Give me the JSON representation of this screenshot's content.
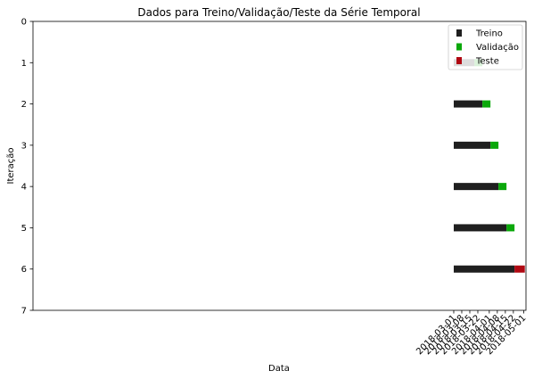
{
  "chart_data": {
    "type": "bar",
    "orientation": "horizontal",
    "title": "Dados para Treino/Validação/Teste da Série Temporal",
    "xlabel": "Data",
    "ylabel": "Iteração",
    "xlim": [
      "2017-02-27",
      "2018-05-03"
    ],
    "ylim": [
      7,
      0
    ],
    "x_ticks": [
      "2018-03-01",
      "2018-03-08",
      "2018-03-15",
      "2018-03-22",
      "2018-04-01",
      "2018-04-08",
      "2018-04-15",
      "2018-04-22",
      "2018-05-01"
    ],
    "y_ticks": [
      "0",
      "1",
      "2",
      "3",
      "4",
      "5",
      "6",
      "7"
    ],
    "legend": {
      "placement": "top-right",
      "entries": [
        {
          "name": "Treino",
          "color": "#1f1f1f"
        },
        {
          "name": "Validação",
          "color": "#0aa80a"
        },
        {
          "name": "Teste",
          "color": "#b00812"
        }
      ]
    },
    "grid": false,
    "series": [
      {
        "name": "Treino",
        "color": "#1f1f1f",
        "segments": [
          {
            "iteration": 1,
            "start": "2018-03-01",
            "end": "2018-03-19"
          },
          {
            "iteration": 2,
            "start": "2018-03-01",
            "end": "2018-03-26"
          },
          {
            "iteration": 3,
            "start": "2018-03-01",
            "end": "2018-04-02"
          },
          {
            "iteration": 4,
            "start": "2018-03-01",
            "end": "2018-04-09"
          },
          {
            "iteration": 5,
            "start": "2018-03-01",
            "end": "2018-04-16"
          },
          {
            "iteration": 6,
            "start": "2018-03-01",
            "end": "2018-04-23"
          }
        ]
      },
      {
        "name": "Validação",
        "color": "#0aa80a",
        "segments": [
          {
            "iteration": 1,
            "start": "2018-03-19",
            "end": "2018-03-26"
          },
          {
            "iteration": 2,
            "start": "2018-03-26",
            "end": "2018-04-02"
          },
          {
            "iteration": 3,
            "start": "2018-04-02",
            "end": "2018-04-09"
          },
          {
            "iteration": 4,
            "start": "2018-04-09",
            "end": "2018-04-16"
          },
          {
            "iteration": 5,
            "start": "2018-04-16",
            "end": "2018-04-23"
          }
        ]
      },
      {
        "name": "Teste",
        "color": "#b00812",
        "segments": [
          {
            "iteration": 6,
            "start": "2018-04-23",
            "end": "2018-05-02"
          }
        ]
      }
    ]
  }
}
